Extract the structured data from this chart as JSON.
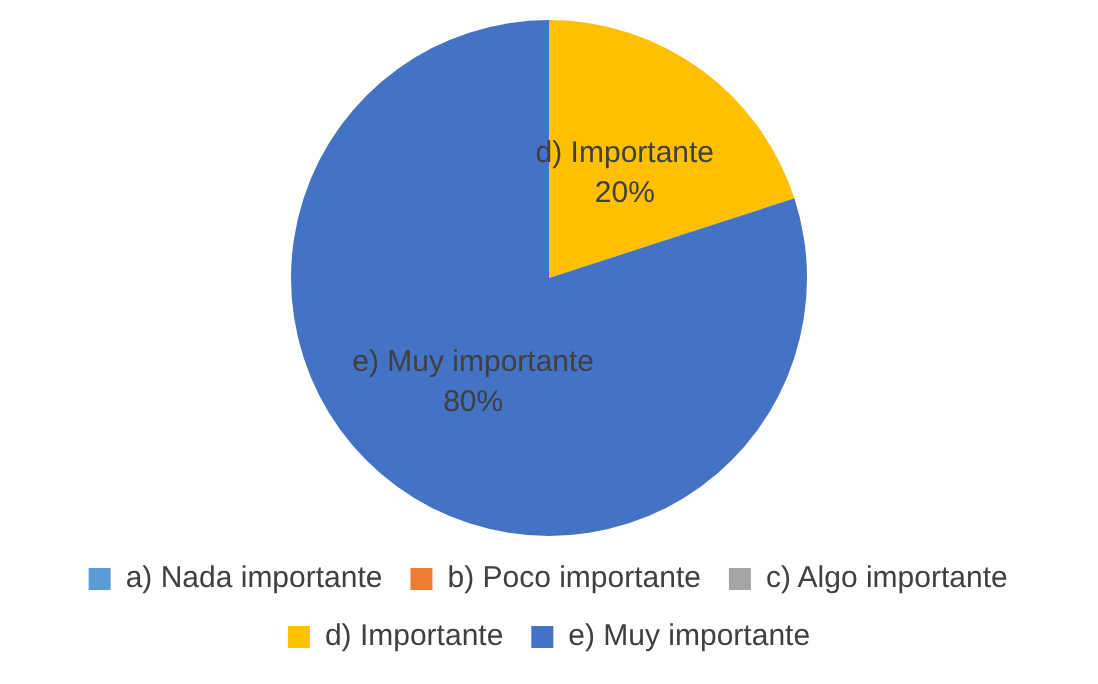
{
  "chart_data": {
    "type": "pie",
    "categories": [
      "a) Nada importante",
      "b) Poco importante",
      "c) Algo importante",
      "d) Importante",
      "e) Muy importante"
    ],
    "values": [
      0,
      0,
      0,
      20,
      80
    ],
    "colors": [
      "#5b9bd5",
      "#ed7d31",
      "#a5a5a5",
      "#ffc000",
      "#4472c4"
    ],
    "value_labels": [
      null,
      null,
      null,
      "20%",
      "80%"
    ],
    "legend": "bottom"
  }
}
